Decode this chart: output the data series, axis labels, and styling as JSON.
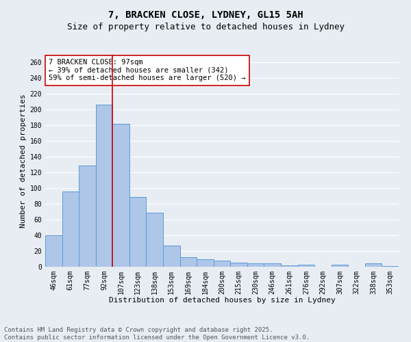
{
  "title": "7, BRACKEN CLOSE, LYDNEY, GL15 5AH",
  "subtitle": "Size of property relative to detached houses in Lydney",
  "xlabel": "Distribution of detached houses by size in Lydney",
  "ylabel": "Number of detached properties",
  "categories": [
    "46sqm",
    "61sqm",
    "77sqm",
    "92sqm",
    "107sqm",
    "123sqm",
    "138sqm",
    "153sqm",
    "169sqm",
    "184sqm",
    "200sqm",
    "215sqm",
    "230sqm",
    "246sqm",
    "261sqm",
    "276sqm",
    "292sqm",
    "307sqm",
    "322sqm",
    "338sqm",
    "353sqm"
  ],
  "values": [
    40,
    96,
    129,
    206,
    182,
    89,
    69,
    27,
    12,
    10,
    8,
    5,
    4,
    4,
    2,
    3,
    0,
    3,
    0,
    4,
    1
  ],
  "bar_color": "#aec6e8",
  "bar_edgecolor": "#5b9bd5",
  "background_color": "#e8edf4",
  "grid_color": "#ffffff",
  "vline_x": 3.5,
  "vline_color": "#cc0000",
  "annotation_text": "7 BRACKEN CLOSE: 97sqm\n← 39% of detached houses are smaller (342)\n59% of semi-detached houses are larger (520) →",
  "annotation_box_color": "#ffffff",
  "annotation_box_edgecolor": "#cc0000",
  "footer_text": "Contains HM Land Registry data © Crown copyright and database right 2025.\nContains public sector information licensed under the Open Government Licence v3.0.",
  "ylim": [
    0,
    270
  ],
  "yticks": [
    0,
    20,
    40,
    60,
    80,
    100,
    120,
    140,
    160,
    180,
    200,
    220,
    240,
    260
  ],
  "title_fontsize": 10,
  "subtitle_fontsize": 9,
  "axis_label_fontsize": 8,
  "tick_fontsize": 7,
  "annotation_fontsize": 7.5,
  "footer_fontsize": 6.5
}
